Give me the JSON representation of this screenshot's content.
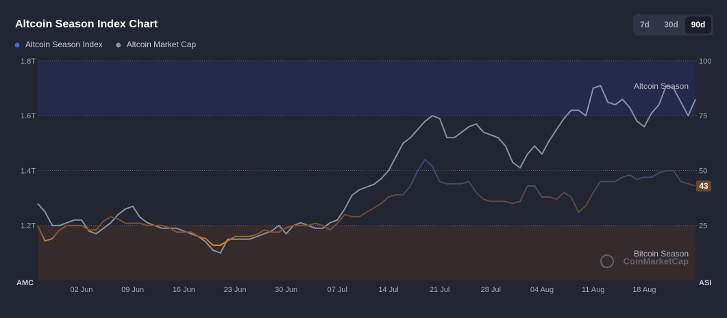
{
  "chart_data": {
    "type": "line",
    "title": "Altcoin Season Index Chart",
    "range_buttons": [
      "7d",
      "30d",
      "90d"
    ],
    "active_button": 2,
    "x": [
      "27 May",
      "28 May",
      "29 May",
      "30 May",
      "31 May",
      "01 Jun",
      "02 Jun",
      "03 Jun",
      "04 Jun",
      "05 Jun",
      "06 Jun",
      "07 Jun",
      "08 Jun",
      "09 Jun",
      "10 Jun",
      "11 Jun",
      "12 Jun",
      "13 Jun",
      "14 Jun",
      "15 Jun",
      "16 Jun",
      "17 Jun",
      "18 Jun",
      "19 Jun",
      "20 Jun",
      "21 Jun",
      "22 Jun",
      "23 Jun",
      "24 Jun",
      "25 Jun",
      "26 Jun",
      "27 Jun",
      "28 Jun",
      "29 Jun",
      "30 Jun",
      "01 Jul",
      "02 Jul",
      "03 Jul",
      "04 Jul",
      "05 Jul",
      "06 Jul",
      "07 Jul",
      "08 Jul",
      "09 Jul",
      "10 Jul",
      "11 Jul",
      "12 Jul",
      "13 Jul",
      "14 Jul",
      "15 Jul",
      "16 Jul",
      "17 Jul",
      "18 Jul",
      "19 Jul",
      "20 Jul",
      "21 Jul",
      "22 Jul",
      "23 Jul",
      "24 Jul",
      "25 Jul",
      "26 Jul",
      "27 Jul",
      "28 Jul",
      "29 Jul",
      "30 Jul",
      "31 Jul",
      "01 Aug",
      "02 Aug",
      "03 Aug",
      "04 Aug",
      "05 Aug",
      "06 Aug",
      "07 Aug",
      "08 Aug",
      "09 Aug",
      "10 Aug",
      "11 Aug",
      "12 Aug",
      "13 Aug",
      "14 Aug",
      "15 Aug",
      "16 Aug",
      "17 Aug",
      "18 Aug",
      "19 Aug",
      "20 Aug",
      "21 Aug",
      "22 Aug",
      "23 Aug",
      "24 Aug",
      "25 Aug"
    ],
    "xticks": [
      "02 Jun",
      "09 Jun",
      "16 Jun",
      "23 Jun",
      "30 Jun",
      "07 Jul",
      "14 Jul",
      "21 Jul",
      "28 Jul",
      "04 Aug",
      "11 Aug",
      "18 Aug"
    ],
    "series": [
      {
        "name": "Altcoin Season Index",
        "color": "#3861fb",
        "line_color": "#f7931a",
        "axis": "y2",
        "values": [
          25,
          18,
          19,
          23,
          25,
          25,
          25,
          23,
          23,
          27,
          29,
          28,
          26,
          26,
          26,
          25,
          25,
          25,
          24,
          22,
          22,
          22,
          20,
          19,
          16,
          16,
          18,
          20,
          20,
          20,
          21,
          23,
          22,
          22,
          24,
          25,
          25,
          25,
          26,
          25,
          23,
          26,
          30,
          29,
          29,
          31,
          33,
          35,
          38,
          39,
          39,
          43,
          50,
          55,
          52,
          45,
          44,
          44,
          44,
          45,
          40,
          37,
          36,
          36,
          36,
          35,
          36,
          43,
          43,
          38,
          38,
          37,
          40,
          38,
          31,
          34,
          40,
          45,
          45,
          45,
          47,
          48,
          46,
          47,
          47,
          49,
          50,
          50,
          45,
          44,
          43
        ]
      },
      {
        "name": "Altcoin Market Cap",
        "color": "#8a8fa3",
        "axis": "y",
        "values": [
          1.28,
          1.25,
          1.2,
          1.2,
          1.21,
          1.22,
          1.22,
          1.18,
          1.17,
          1.19,
          1.21,
          1.24,
          1.26,
          1.27,
          1.23,
          1.21,
          1.2,
          1.19,
          1.19,
          1.19,
          1.18,
          1.17,
          1.16,
          1.14,
          1.11,
          1.1,
          1.15,
          1.15,
          1.15,
          1.15,
          1.16,
          1.17,
          1.18,
          1.2,
          1.17,
          1.2,
          1.21,
          1.2,
          1.19,
          1.19,
          1.21,
          1.22,
          1.26,
          1.31,
          1.33,
          1.34,
          1.35,
          1.37,
          1.4,
          1.45,
          1.5,
          1.52,
          1.55,
          1.58,
          1.6,
          1.59,
          1.52,
          1.52,
          1.54,
          1.56,
          1.57,
          1.54,
          1.53,
          1.52,
          1.49,
          1.43,
          1.41,
          1.46,
          1.49,
          1.46,
          1.51,
          1.55,
          1.59,
          1.62,
          1.62,
          1.6,
          1.7,
          1.71,
          1.65,
          1.64,
          1.66,
          1.63,
          1.58,
          1.56,
          1.61,
          1.64,
          1.71,
          1.7,
          1.65,
          1.6,
          1.66
        ]
      }
    ],
    "ylim": [
      1.0,
      1.8
    ],
    "yticks": [
      {
        "value": 1.2,
        "label": "1.2T"
      },
      {
        "value": 1.4,
        "label": "1.4T"
      },
      {
        "value": 1.6,
        "label": "1.6T"
      },
      {
        "value": 1.8,
        "label": "1.8T"
      }
    ],
    "y_label": "AMC",
    "y2lim": [
      0,
      100
    ],
    "y2ticks": [
      25,
      50,
      75,
      100
    ],
    "y2_label": "ASI",
    "bands": [
      {
        "label": "Altcoin Season",
        "range": [
          75,
          100
        ],
        "color": "#262a4a"
      },
      {
        "label": "Bitcoin Season",
        "range": [
          0,
          25
        ],
        "color": "#352b2c"
      }
    ],
    "watermark": "CoinMarketCap",
    "grid": true
  }
}
